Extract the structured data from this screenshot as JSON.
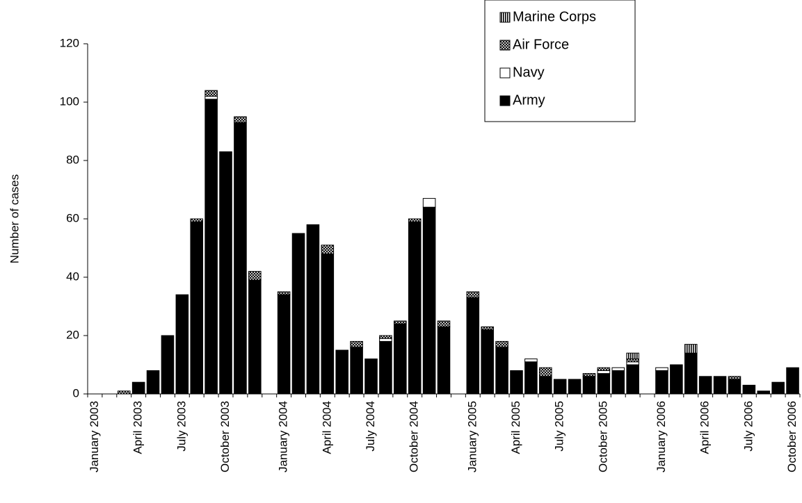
{
  "chart_data": {
    "type": "stacked_bar",
    "y_label": "Number of cases",
    "categories": [
      "January 2003",
      null,
      null,
      "April 2003",
      null,
      null,
      "July 2003",
      null,
      null,
      "October 2003",
      null,
      null,
      null,
      "January 2004",
      null,
      null,
      "April 2004",
      null,
      null,
      "July 2004",
      null,
      null,
      "October 2004",
      null,
      null,
      null,
      "January 2005",
      null,
      null,
      "April 2005",
      null,
      null,
      "July 2005",
      null,
      null,
      "October 2005",
      null,
      null,
      null,
      "January 2006",
      null,
      null,
      "April 2006",
      null,
      null,
      "July 2006",
      null,
      null,
      "October 2006"
    ],
    "series": [
      {
        "name": "Army",
        "color": "#000000",
        "pattern": "solid",
        "values": [
          0,
          0,
          0,
          4,
          8,
          20,
          34,
          59,
          101,
          83,
          93,
          39,
          null,
          34,
          55,
          58,
          48,
          15,
          16,
          12,
          18,
          24,
          59,
          64,
          23,
          null,
          33,
          22,
          16,
          8,
          11,
          6,
          5,
          5,
          6,
          7,
          8,
          10,
          null,
          8,
          10,
          14,
          6,
          6,
          5,
          3,
          1,
          4,
          9
        ]
      },
      {
        "name": "Navy",
        "color": "#ffffff",
        "pattern": "solid",
        "values": [
          0,
          0,
          0,
          0,
          0,
          0,
          0,
          0,
          1,
          0,
          0,
          0,
          null,
          0,
          0,
          0,
          0,
          0,
          0,
          0,
          1,
          0,
          0,
          3,
          0,
          null,
          0,
          0,
          0,
          0,
          1,
          0,
          0,
          0,
          0,
          1,
          1,
          1,
          null,
          1,
          0,
          0,
          0,
          0,
          0,
          0,
          0,
          0,
          0
        ]
      },
      {
        "name": "Air Force",
        "color": "#000000",
        "pattern": "crosshatch",
        "values": [
          0,
          0,
          1,
          0,
          0,
          0,
          0,
          1,
          2,
          0,
          2,
          3,
          null,
          1,
          0,
          0,
          3,
          0,
          2,
          0,
          1,
          1,
          1,
          0,
          2,
          null,
          2,
          1,
          2,
          0,
          0,
          3,
          0,
          0,
          1,
          1,
          0,
          1,
          null,
          0,
          0,
          0,
          0,
          0,
          1,
          0,
          0,
          0,
          0
        ]
      },
      {
        "name": "Marine Corps",
        "color": "#000000",
        "pattern": "vertical",
        "values": [
          0,
          0,
          0,
          0,
          0,
          0,
          0,
          0,
          0,
          0,
          0,
          0,
          null,
          0,
          0,
          0,
          0,
          0,
          0,
          0,
          0,
          0,
          0,
          0,
          0,
          null,
          0,
          0,
          0,
          0,
          0,
          0,
          0,
          0,
          0,
          0,
          0,
          2,
          null,
          0,
          0,
          3,
          0,
          0,
          0,
          0,
          0,
          0,
          0
        ]
      }
    ],
    "ylim": [
      0,
      120
    ],
    "yticks": [
      0,
      20,
      40,
      60,
      80,
      100,
      120
    ],
    "grid": false,
    "legend": "top-right"
  }
}
